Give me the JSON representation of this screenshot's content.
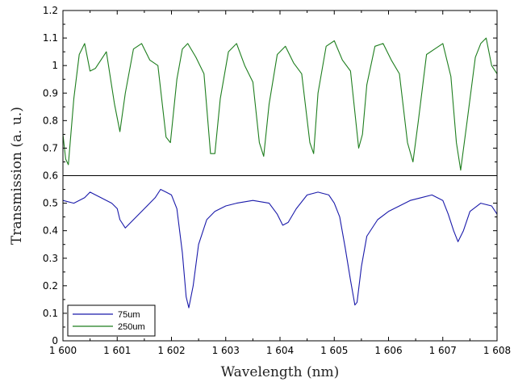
{
  "chart_data": {
    "type": "line",
    "xlabel": "Wavelength (nm)",
    "ylabel": "Transmission (a. u.)",
    "xlim": [
      1600,
      1608
    ],
    "ylim": [
      0,
      1.2
    ],
    "x_ticks": [
      1600,
      1601,
      1602,
      1603,
      1604,
      1605,
      1606,
      1607,
      1608
    ],
    "x_tick_labels": [
      "1 600",
      "1 601",
      "1 602",
      "1 603",
      "1 604",
      "1 605",
      "1 606",
      "1 607",
      "1 608"
    ],
    "y_ticks": [
      0,
      0.1,
      0.2,
      0.3,
      0.4,
      0.5,
      0.6,
      0.7,
      0.8,
      0.9,
      1,
      1.1,
      1.2
    ],
    "y_tick_labels": [
      "0",
      "0.1",
      "0.2",
      "0.3",
      "0.4",
      "0.5",
      "0.6",
      "0.7",
      "0.8",
      "0.9",
      "1",
      "1.1",
      "1.2"
    ],
    "separator_y": 0.6,
    "grid": false,
    "legend_position": "bottom-left",
    "series": [
      {
        "name": "75um",
        "color": "#1a1aaa",
        "x": [
          1600.0,
          1600.2,
          1600.4,
          1600.5,
          1600.7,
          1600.9,
          1601.0,
          1601.05,
          1601.15,
          1601.3,
          1601.5,
          1601.7,
          1601.8,
          1601.9,
          1602.0,
          1602.1,
          1602.2,
          1602.27,
          1602.32,
          1602.4,
          1602.5,
          1602.65,
          1602.8,
          1603.0,
          1603.2,
          1603.5,
          1603.8,
          1603.95,
          1604.05,
          1604.15,
          1604.3,
          1604.5,
          1604.7,
          1604.9,
          1605.0,
          1605.1,
          1605.2,
          1605.3,
          1605.38,
          1605.42,
          1605.5,
          1605.6,
          1605.8,
          1606.0,
          1606.2,
          1606.4,
          1606.6,
          1606.8,
          1607.0,
          1607.1,
          1607.2,
          1607.28,
          1607.38,
          1607.5,
          1607.7,
          1607.9,
          1608.0
        ],
        "y": [
          0.51,
          0.5,
          0.52,
          0.54,
          0.52,
          0.5,
          0.48,
          0.44,
          0.41,
          0.44,
          0.48,
          0.52,
          0.55,
          0.54,
          0.53,
          0.48,
          0.32,
          0.16,
          0.12,
          0.2,
          0.35,
          0.44,
          0.47,
          0.49,
          0.5,
          0.51,
          0.5,
          0.46,
          0.42,
          0.43,
          0.48,
          0.53,
          0.54,
          0.53,
          0.5,
          0.45,
          0.34,
          0.22,
          0.13,
          0.14,
          0.27,
          0.38,
          0.44,
          0.47,
          0.49,
          0.51,
          0.52,
          0.53,
          0.51,
          0.46,
          0.4,
          0.36,
          0.4,
          0.47,
          0.5,
          0.49,
          0.46
        ]
      },
      {
        "name": "250um",
        "color": "#1e7e1e",
        "x": [
          1600.0,
          1600.05,
          1600.1,
          1600.2,
          1600.3,
          1600.4,
          1600.5,
          1600.6,
          1600.8,
          1600.95,
          1601.05,
          1601.15,
          1601.3,
          1601.45,
          1601.6,
          1601.75,
          1601.9,
          1601.98,
          1602.1,
          1602.2,
          1602.3,
          1602.45,
          1602.6,
          1602.72,
          1602.8,
          1602.9,
          1603.05,
          1603.2,
          1603.35,
          1603.5,
          1603.62,
          1603.7,
          1603.8,
          1603.95,
          1604.1,
          1604.25,
          1604.4,
          1604.55,
          1604.62,
          1604.7,
          1604.85,
          1605.0,
          1605.15,
          1605.3,
          1605.45,
          1605.52,
          1605.6,
          1605.75,
          1605.9,
          1606.05,
          1606.2,
          1606.35,
          1606.45,
          1606.55,
          1606.7,
          1606.85,
          1607.0,
          1607.15,
          1607.25,
          1607.33,
          1607.45,
          1607.6,
          1607.7,
          1607.8,
          1607.9,
          1608.0
        ],
        "y": [
          0.75,
          0.66,
          0.64,
          0.88,
          1.04,
          1.08,
          0.98,
          0.99,
          1.05,
          0.86,
          0.76,
          0.9,
          1.06,
          1.08,
          1.02,
          1.0,
          0.74,
          0.72,
          0.95,
          1.06,
          1.08,
          1.03,
          0.97,
          0.68,
          0.68,
          0.88,
          1.05,
          1.08,
          1.0,
          0.94,
          0.72,
          0.67,
          0.86,
          1.04,
          1.07,
          1.01,
          0.97,
          0.72,
          0.68,
          0.9,
          1.07,
          1.09,
          1.02,
          0.98,
          0.7,
          0.75,
          0.93,
          1.07,
          1.08,
          1.02,
          0.97,
          0.72,
          0.65,
          0.8,
          1.04,
          1.06,
          1.08,
          0.96,
          0.72,
          0.62,
          0.8,
          1.03,
          1.08,
          1.1,
          1.0,
          0.97
        ]
      }
    ]
  }
}
